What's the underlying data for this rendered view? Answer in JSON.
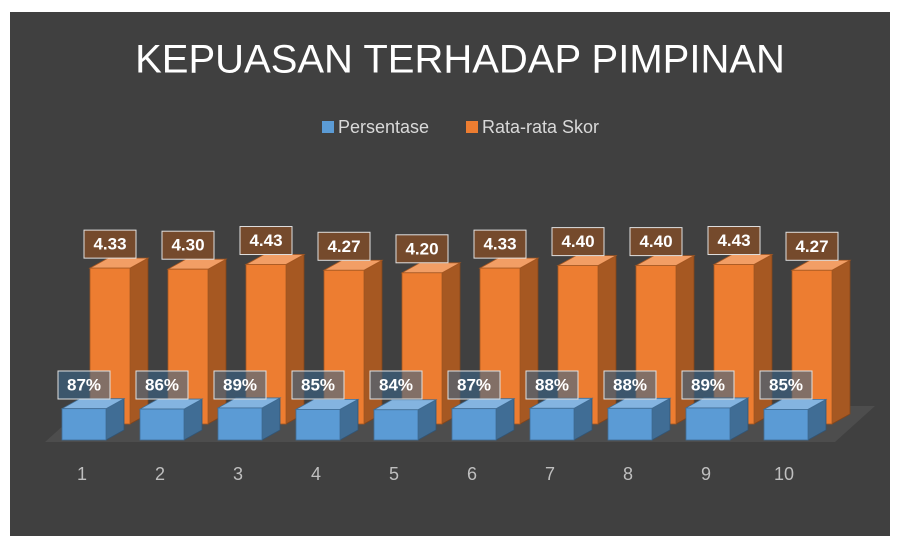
{
  "chart_data": {
    "type": "bar3d",
    "title": "KEPUASAN TERHADAP PIMPINAN",
    "categories": [
      "1",
      "2",
      "3",
      "4",
      "5",
      "6",
      "7",
      "8",
      "9",
      "10"
    ],
    "series": [
      {
        "name": "Persentase",
        "color": "#5b9bd5",
        "values": [
          0.87,
          0.86,
          0.89,
          0.85,
          0.84,
          0.87,
          0.88,
          0.88,
          0.89,
          0.85
        ],
        "value_labels": [
          "87%",
          "86%",
          "89%",
          "85%",
          "84%",
          "87%",
          "88%",
          "88%",
          "89%",
          "85%"
        ]
      },
      {
        "name": "Rata-rata Skor",
        "color": "#ed7d31",
        "values": [
          4.33,
          4.3,
          4.43,
          4.27,
          4.2,
          4.33,
          4.4,
          4.4,
          4.43,
          4.27
        ],
        "value_labels": [
          "4.33",
          "4.30",
          "4.43",
          "4.27",
          "4.20",
          "4.33",
          "4.40",
          "4.40",
          "4.43",
          "4.27"
        ]
      }
    ],
    "legend": "top"
  }
}
